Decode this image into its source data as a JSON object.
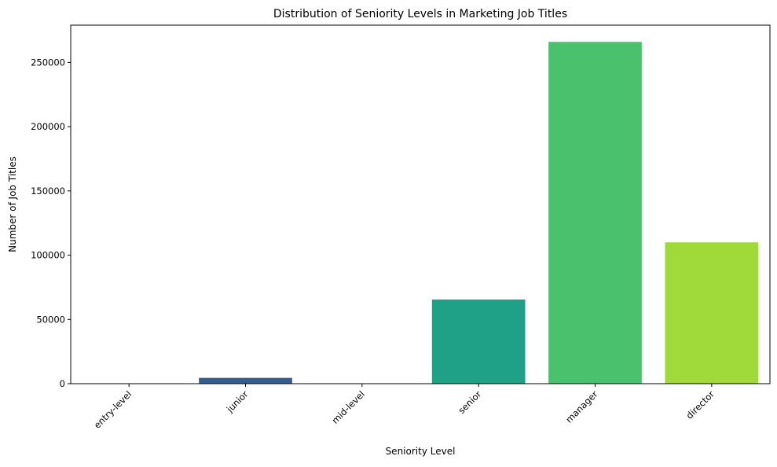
{
  "chart_data": {
    "type": "bar",
    "title": "Distribution of Seniority Levels in Marketing Job Titles",
    "xlabel": "Seniority Level",
    "ylabel": "Number of Job Titles",
    "categories": [
      "entry-level",
      "junior",
      "mid-level",
      "senior",
      "manager",
      "director"
    ],
    "values": [
      200,
      4500,
      300,
      65500,
      266000,
      110000
    ],
    "colors": [
      "#46337e",
      "#365c8d",
      "#277f8e",
      "#1fa187",
      "#4ac16d",
      "#9fda3a"
    ],
    "ylim": [
      0,
      279000
    ],
    "yticks": [
      0,
      50000,
      100000,
      150000,
      200000,
      250000
    ],
    "ytick_labels": [
      "0",
      "50000",
      "100000",
      "150000",
      "200000",
      "250000"
    ],
    "grid": false,
    "legend": "none"
  }
}
